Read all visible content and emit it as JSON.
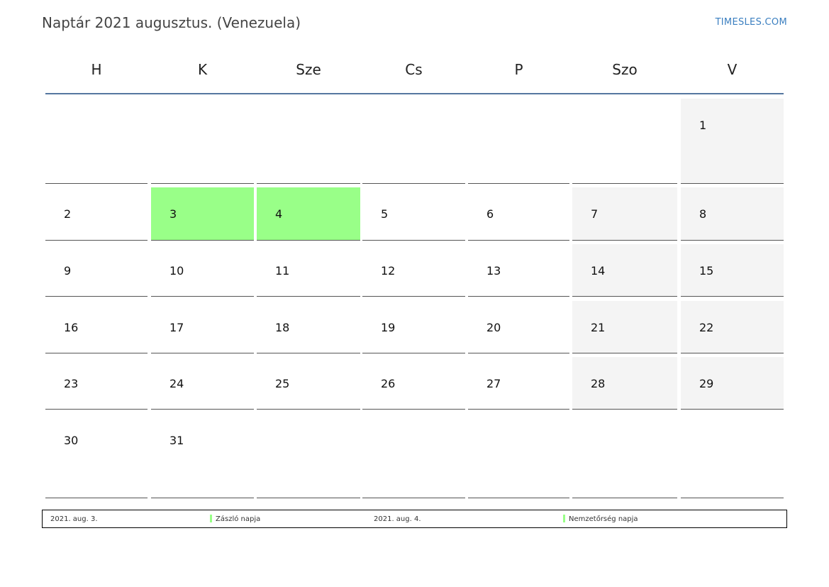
{
  "header": {
    "title": "Naptár 2021 augusztus. (Venezuela)",
    "brand": "TIMESLES.COM"
  },
  "weekdays": [
    "H",
    "K",
    "Sze",
    "Cs",
    "P",
    "Szo",
    "V"
  ],
  "weeks": [
    [
      "",
      "",
      "",
      "",
      "",
      "",
      "1"
    ],
    [
      "2",
      "3",
      "4",
      "5",
      "6",
      "7",
      "8"
    ],
    [
      "9",
      "10",
      "11",
      "12",
      "13",
      "14",
      "15"
    ],
    [
      "16",
      "17",
      "18",
      "19",
      "20",
      "21",
      "22"
    ],
    [
      "23",
      "24",
      "25",
      "26",
      "27",
      "28",
      "29"
    ],
    [
      "30",
      "31",
      "",
      "",
      "",
      "",
      ""
    ]
  ],
  "holiday_days": [
    "3",
    "4"
  ],
  "colors": {
    "holiday": "#99ff88",
    "weekend": "#f4f4f4",
    "header_line": "#5577a0",
    "brand": "#3b7fc0"
  },
  "legend": [
    {
      "date": "2021. aug. 3.",
      "name": "Zászló napja"
    },
    {
      "date": "2021. aug. 4.",
      "name": "Nemzetőrség napja"
    }
  ]
}
